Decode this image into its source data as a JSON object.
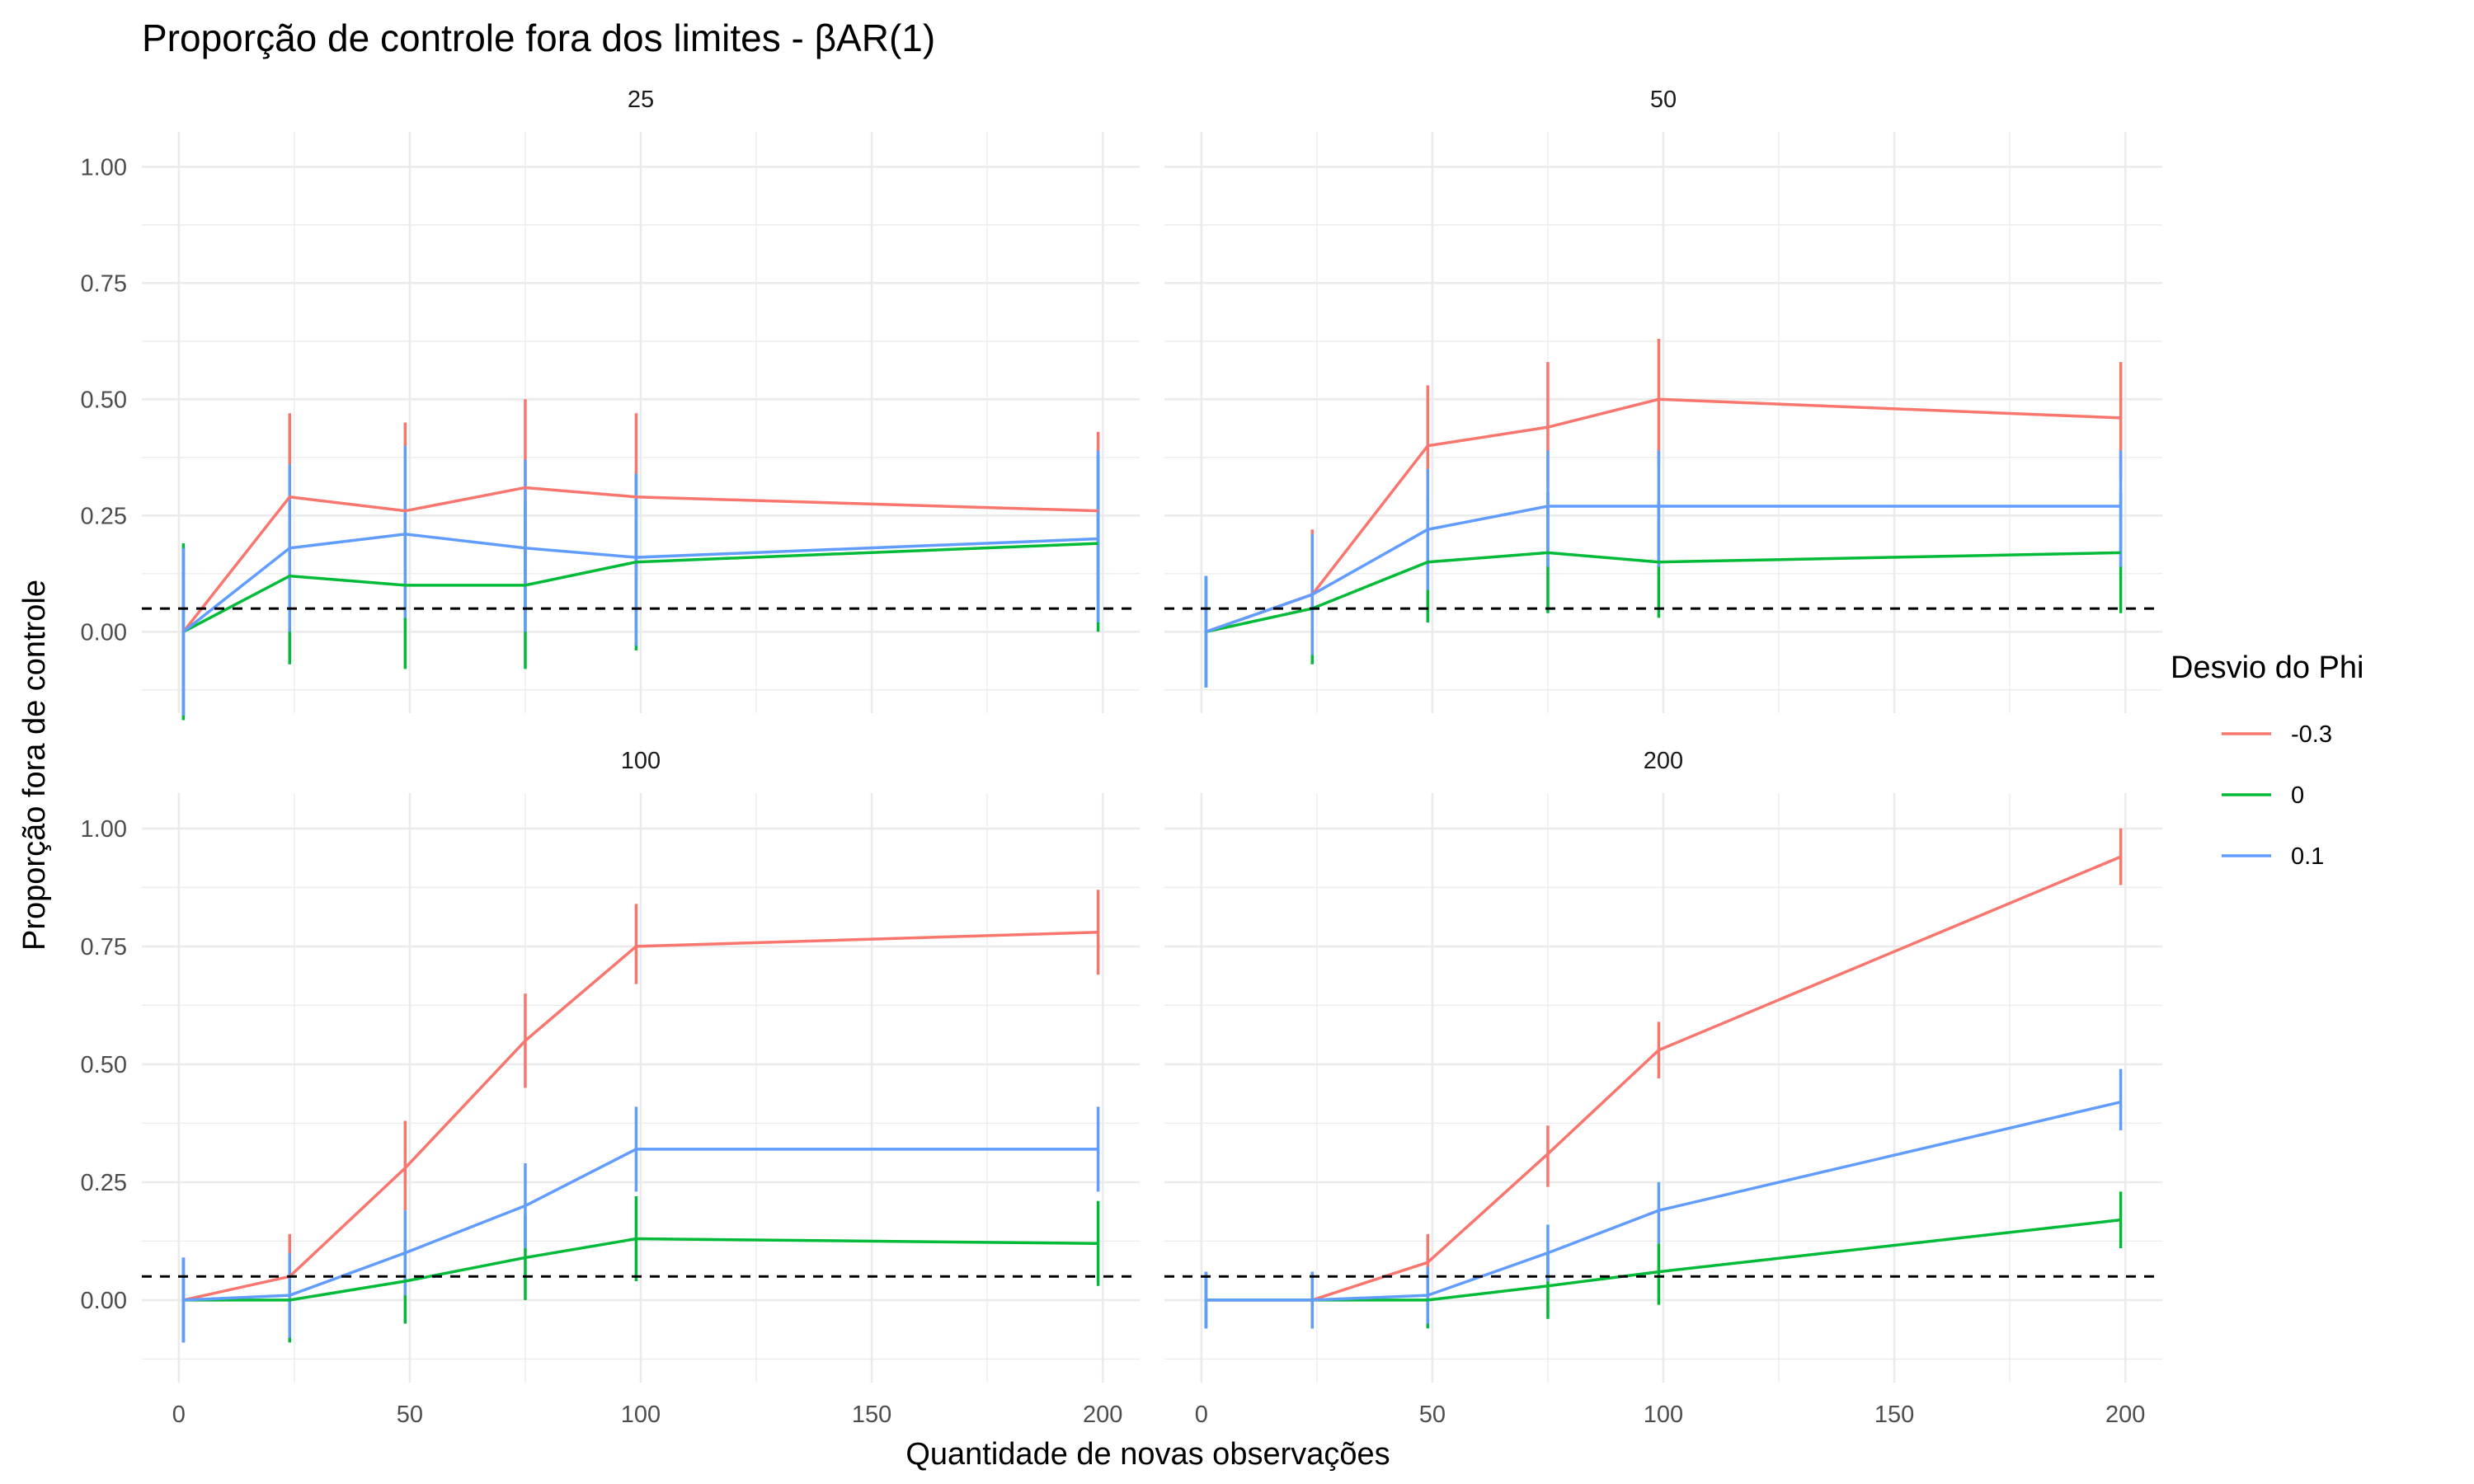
{
  "chart_data": {
    "type": "line",
    "title": "Proporção de controle fora dos limites - βAR(1)",
    "xlabel": "Quantidade de novas observações",
    "ylabel": "Proporção fora de controle",
    "x_ticks": [
      0,
      50,
      100,
      150,
      200
    ],
    "y_ticks": [
      "0.00",
      "0.25",
      "0.50",
      "0.75",
      "1.00"
    ],
    "xlim": [
      -8,
      208
    ],
    "ylim": [
      -0.175,
      1.075
    ],
    "reference_line": 0.05,
    "grid": true,
    "legend": {
      "title": "Desvio do Phi",
      "position": "right",
      "entries": [
        "-0.3",
        "0",
        "0.1"
      ],
      "colors": [
        "#F8766D",
        "#00BA38",
        "#619CFF"
      ]
    },
    "panels": [
      {
        "label": "25",
        "series": [
          {
            "name": "-0.3",
            "color": "#F8766D",
            "x": [
              1,
              24,
              49,
              75,
              99,
              199
            ],
            "y": [
              0.0,
              0.29,
              0.26,
              0.31,
              0.29,
              0.26
            ],
            "lower": [
              -0.18,
              0.1,
              0.07,
              0.11,
              0.1,
              0.08
            ],
            "upper": [
              0.18,
              0.47,
              0.45,
              0.5,
              0.47,
              0.43
            ]
          },
          {
            "name": "0",
            "color": "#00BA38",
            "x": [
              1,
              24,
              49,
              75,
              99,
              199
            ],
            "y": [
              0.0,
              0.12,
              0.1,
              0.1,
              0.15,
              0.19
            ],
            "lower": [
              -0.19,
              -0.07,
              -0.08,
              -0.08,
              -0.04,
              0.0
            ],
            "upper": [
              0.19,
              0.31,
              0.28,
              0.28,
              0.34,
              0.38
            ]
          },
          {
            "name": "0.1",
            "color": "#619CFF",
            "x": [
              1,
              24,
              49,
              75,
              99,
              199
            ],
            "y": [
              0.0,
              0.18,
              0.21,
              0.18,
              0.16,
              0.2
            ],
            "lower": [
              -0.18,
              0.0,
              0.03,
              0.0,
              -0.03,
              0.02
            ],
            "upper": [
              0.18,
              0.36,
              0.4,
              0.37,
              0.34,
              0.39
            ]
          }
        ]
      },
      {
        "label": "50",
        "series": [
          {
            "name": "-0.3",
            "color": "#F8766D",
            "x": [
              1,
              24,
              49,
              75,
              99,
              199
            ],
            "y": [
              0.0,
              0.08,
              0.4,
              0.44,
              0.5,
              0.46
            ],
            "lower": [
              -0.12,
              -0.05,
              0.26,
              0.31,
              0.36,
              0.33
            ],
            "upper": [
              0.12,
              0.22,
              0.53,
              0.58,
              0.63,
              0.58
            ]
          },
          {
            "name": "0",
            "color": "#00BA38",
            "x": [
              1,
              24,
              49,
              75,
              99,
              199
            ],
            "y": [
              0.0,
              0.05,
              0.15,
              0.17,
              0.15,
              0.17
            ],
            "lower": [
              -0.12,
              -0.07,
              0.02,
              0.04,
              0.03,
              0.04
            ],
            "upper": [
              0.12,
              0.18,
              0.29,
              0.3,
              0.28,
              0.3
            ]
          },
          {
            "name": "0.1",
            "color": "#619CFF",
            "x": [
              1,
              24,
              49,
              75,
              99,
              199
            ],
            "y": [
              0.0,
              0.08,
              0.22,
              0.27,
              0.27,
              0.27
            ],
            "lower": [
              -0.12,
              -0.05,
              0.09,
              0.14,
              0.14,
              0.14
            ],
            "upper": [
              0.12,
              0.21,
              0.35,
              0.39,
              0.39,
              0.39
            ]
          }
        ]
      },
      {
        "label": "100",
        "series": [
          {
            "name": "-0.3",
            "color": "#F8766D",
            "x": [
              1,
              24,
              49,
              75,
              99,
              199
            ],
            "y": [
              0.0,
              0.05,
              0.28,
              0.55,
              0.75,
              0.78
            ],
            "lower": [
              -0.09,
              -0.04,
              0.19,
              0.45,
              0.67,
              0.69
            ],
            "upper": [
              0.09,
              0.14,
              0.38,
              0.65,
              0.84,
              0.87
            ]
          },
          {
            "name": "0",
            "color": "#00BA38",
            "x": [
              1,
              24,
              49,
              75,
              99,
              199
            ],
            "y": [
              0.0,
              0.0,
              0.04,
              0.09,
              0.13,
              0.12
            ],
            "lower": [
              -0.09,
              -0.09,
              -0.05,
              0.0,
              0.04,
              0.03
            ],
            "upper": [
              0.09,
              0.09,
              0.13,
              0.18,
              0.22,
              0.21
            ]
          },
          {
            "name": "0.1",
            "color": "#619CFF",
            "x": [
              1,
              24,
              49,
              75,
              99,
              199
            ],
            "y": [
              0.0,
              0.01,
              0.1,
              0.2,
              0.32,
              0.32
            ],
            "lower": [
              -0.09,
              -0.08,
              0.01,
              0.11,
              0.23,
              0.23
            ],
            "upper": [
              0.09,
              0.1,
              0.19,
              0.29,
              0.41,
              0.41
            ]
          }
        ]
      },
      {
        "label": "200",
        "series": [
          {
            "name": "-0.3",
            "color": "#F8766D",
            "x": [
              1,
              24,
              49,
              75,
              99,
              199
            ],
            "y": [
              0.0,
              0.0,
              0.08,
              0.31,
              0.53,
              0.94
            ],
            "lower": [
              -0.06,
              -0.06,
              0.02,
              0.24,
              0.47,
              0.88
            ],
            "upper": [
              0.06,
              0.06,
              0.14,
              0.37,
              0.59,
              1.0
            ]
          },
          {
            "name": "0",
            "color": "#00BA38",
            "x": [
              1,
              24,
              49,
              75,
              99,
              199
            ],
            "y": [
              0.0,
              0.0,
              0.0,
              0.03,
              0.06,
              0.17
            ],
            "lower": [
              -0.06,
              -0.06,
              -0.06,
              -0.04,
              -0.01,
              0.11
            ],
            "upper": [
              0.06,
              0.06,
              0.06,
              0.1,
              0.12,
              0.23
            ]
          },
          {
            "name": "0.1",
            "color": "#619CFF",
            "x": [
              1,
              24,
              49,
              75,
              99,
              199
            ],
            "y": [
              0.0,
              0.0,
              0.01,
              0.1,
              0.19,
              0.42
            ],
            "lower": [
              -0.06,
              -0.06,
              -0.05,
              0.04,
              0.12,
              0.36
            ],
            "upper": [
              0.06,
              0.06,
              0.07,
              0.16,
              0.25,
              0.49
            ]
          }
        ]
      }
    ]
  }
}
